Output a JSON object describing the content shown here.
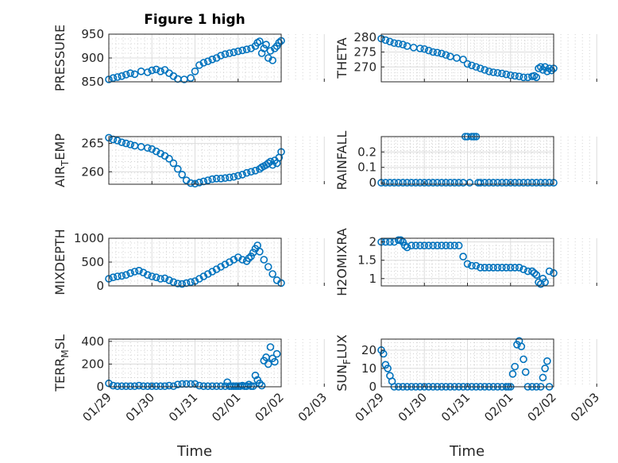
{
  "figure_title": "Figure 1 high",
  "x_ticks": [
    "01/29",
    "01/30",
    "01/31",
    "02/01",
    "02/02",
    "02/03"
  ],
  "x_label": "Time",
  "marker_color": "#0072bd",
  "chart_data": [
    {
      "type": "scatter",
      "ylabel": "PRESSURE",
      "yticks": [
        850,
        900,
        950
      ],
      "ylim": [
        850,
        950
      ],
      "grid": true,
      "x": [
        0.0,
        0.1,
        0.2,
        0.3,
        0.4,
        0.5,
        0.6,
        0.75,
        0.9,
        1.0,
        1.1,
        1.2,
        1.3,
        1.4,
        1.5,
        1.6,
        1.75,
        1.9,
        2.0,
        2.1,
        2.2,
        2.3,
        2.4,
        2.5,
        2.6,
        2.7,
        2.8,
        2.9,
        3.0,
        3.1,
        3.2,
        3.3,
        3.4,
        3.45,
        3.5,
        3.55,
        3.6,
        3.65,
        3.7,
        3.75,
        3.8,
        3.85,
        3.9,
        3.95,
        4.0
      ],
      "y": [
        855,
        858,
        860,
        862,
        865,
        868,
        866,
        872,
        870,
        874,
        876,
        872,
        875,
        868,
        862,
        856,
        855,
        858,
        872,
        885,
        890,
        893,
        897,
        900,
        905,
        908,
        910,
        912,
        914,
        916,
        918,
        920,
        925,
        932,
        935,
        910,
        920,
        928,
        900,
        915,
        895,
        920,
        925,
        932,
        936
      ]
    },
    {
      "type": "scatter",
      "ylabel": "THETA",
      "yticks": [
        270,
        275,
        280
      ],
      "ylim": [
        265,
        281
      ],
      "grid": true,
      "x": [
        0.0,
        0.1,
        0.2,
        0.3,
        0.4,
        0.5,
        0.6,
        0.75,
        0.9,
        1.0,
        1.1,
        1.2,
        1.3,
        1.4,
        1.5,
        1.6,
        1.75,
        1.9,
        2.0,
        2.1,
        2.2,
        2.3,
        2.4,
        2.5,
        2.6,
        2.7,
        2.8,
        2.9,
        3.0,
        3.1,
        3.2,
        3.3,
        3.4,
        3.5,
        3.55,
        3.6,
        3.65,
        3.7,
        3.75,
        3.8,
        3.85,
        3.9,
        3.95,
        4.0
      ],
      "y": [
        279.5,
        279.0,
        278.5,
        278.0,
        277.8,
        277.5,
        277.0,
        276.5,
        276.2,
        276.0,
        275.5,
        275.0,
        274.8,
        274.5,
        274.0,
        273.5,
        273.0,
        272.5,
        271.0,
        270.5,
        270.0,
        269.5,
        269.0,
        268.5,
        268.2,
        268.0,
        267.8,
        267.5,
        267.2,
        267.0,
        266.8,
        266.5,
        266.5,
        266.8,
        267.0,
        266.5,
        269.5,
        270.0,
        269.0,
        270.0,
        268.5,
        269.5,
        268.8,
        269.5
      ]
    },
    {
      "type": "scatter",
      "ylabel": "AIR_TEMP",
      "yticks": [
        260,
        265
      ],
      "ylim": [
        257.8,
        266.2
      ],
      "grid": true,
      "x": [
        0.0,
        0.1,
        0.2,
        0.3,
        0.4,
        0.5,
        0.6,
        0.75,
        0.9,
        1.0,
        1.1,
        1.2,
        1.3,
        1.4,
        1.5,
        1.6,
        1.7,
        1.8,
        1.9,
        2.0,
        2.1,
        2.2,
        2.3,
        2.4,
        2.5,
        2.6,
        2.7,
        2.8,
        2.9,
        3.0,
        3.1,
        3.2,
        3.3,
        3.4,
        3.5,
        3.55,
        3.6,
        3.65,
        3.7,
        3.75,
        3.8,
        3.85,
        3.9,
        3.95,
        4.0
      ],
      "y": [
        266.0,
        265.7,
        265.5,
        265.2,
        265.0,
        264.8,
        264.6,
        264.4,
        264.2,
        264.0,
        263.6,
        263.2,
        262.8,
        262.3,
        261.5,
        260.5,
        259.5,
        258.5,
        258.0,
        257.9,
        258.1,
        258.3,
        258.5,
        258.7,
        258.8,
        258.8,
        258.9,
        259.0,
        259.1,
        259.3,
        259.5,
        259.8,
        260.0,
        260.2,
        260.5,
        260.8,
        261.0,
        261.2,
        261.5,
        261.8,
        261.2,
        262.0,
        261.5,
        262.5,
        263.5
      ]
    },
    {
      "type": "scatter",
      "ylabel": "RAINFALL",
      "yticks": [
        0,
        0.1,
        0.2
      ],
      "ylim": [
        -0.01,
        0.3
      ],
      "grid": true,
      "x": [
        0.0,
        0.1,
        0.2,
        0.3,
        0.4,
        0.5,
        0.6,
        0.7,
        0.8,
        0.9,
        1.0,
        1.1,
        1.2,
        1.3,
        1.4,
        1.5,
        1.6,
        1.7,
        1.8,
        1.9,
        1.95,
        2.0,
        2.05,
        2.1,
        2.15,
        2.2,
        2.25,
        2.3,
        2.4,
        2.5,
        2.6,
        2.7,
        2.8,
        2.9,
        3.0,
        3.1,
        3.2,
        3.3,
        3.4,
        3.5,
        3.6,
        3.7,
        3.8,
        3.9,
        4.0
      ],
      "y": [
        0,
        0,
        0,
        0,
        0,
        0,
        0,
        0,
        0,
        0,
        0,
        0,
        0,
        0,
        0,
        0,
        0,
        0,
        0,
        0,
        0.3,
        0.3,
        0,
        0.3,
        0.3,
        0.3,
        0,
        0,
        0,
        0,
        0,
        0,
        0,
        0,
        0,
        0,
        0,
        0,
        0,
        0,
        0,
        0,
        0,
        0,
        0
      ]
    },
    {
      "type": "scatter",
      "ylabel": "MIXDEPTH",
      "yticks": [
        0,
        500,
        1000
      ],
      "ylim": [
        0,
        1000
      ],
      "grid": true,
      "x": [
        0.0,
        0.1,
        0.2,
        0.3,
        0.4,
        0.5,
        0.6,
        0.7,
        0.8,
        0.9,
        1.0,
        1.1,
        1.2,
        1.3,
        1.4,
        1.5,
        1.6,
        1.7,
        1.8,
        1.9,
        2.0,
        2.1,
        2.2,
        2.3,
        2.4,
        2.5,
        2.6,
        2.7,
        2.8,
        2.9,
        3.0,
        3.1,
        3.2,
        3.25,
        3.3,
        3.35,
        3.4,
        3.45,
        3.5,
        3.6,
        3.7,
        3.8,
        3.9,
        4.0
      ],
      "y": [
        150,
        180,
        200,
        210,
        230,
        270,
        300,
        320,
        280,
        230,
        200,
        180,
        150,
        160,
        120,
        80,
        50,
        40,
        60,
        80,
        100,
        150,
        200,
        250,
        300,
        350,
        400,
        450,
        500,
        550,
        600,
        550,
        520,
        580,
        620,
        700,
        780,
        850,
        720,
        550,
        400,
        250,
        120,
        60
      ]
    },
    {
      "type": "scatter",
      "ylabel": "H2OMIXRA",
      "yticks": [
        1,
        1.5,
        2
      ],
      "ylim": [
        0.8,
        2.1
      ],
      "grid": true,
      "x": [
        0.0,
        0.1,
        0.2,
        0.3,
        0.4,
        0.45,
        0.5,
        0.55,
        0.6,
        0.7,
        0.8,
        0.9,
        1.0,
        1.1,
        1.2,
        1.3,
        1.4,
        1.5,
        1.6,
        1.7,
        1.8,
        1.9,
        2.0,
        2.1,
        2.2,
        2.3,
        2.4,
        2.5,
        2.6,
        2.7,
        2.8,
        2.9,
        3.0,
        3.1,
        3.2,
        3.3,
        3.4,
        3.5,
        3.55,
        3.6,
        3.65,
        3.7,
        3.75,
        3.8,
        3.9,
        4.0
      ],
      "y": [
        2.0,
        2.0,
        2.0,
        2.0,
        2.05,
        2.05,
        2.0,
        1.9,
        1.85,
        1.9,
        1.9,
        1.9,
        1.9,
        1.9,
        1.9,
        1.9,
        1.9,
        1.9,
        1.9,
        1.9,
        1.9,
        1.6,
        1.4,
        1.35,
        1.35,
        1.3,
        1.3,
        1.3,
        1.3,
        1.3,
        1.3,
        1.3,
        1.3,
        1.3,
        1.3,
        1.25,
        1.2,
        1.2,
        1.15,
        1.1,
        0.9,
        0.85,
        1.0,
        0.9,
        1.2,
        1.15
      ]
    },
    {
      "type": "scatter",
      "ylabel": "TERR_MSL",
      "yticks": [
        0,
        200,
        400
      ],
      "ylim": [
        0,
        420
      ],
      "grid": true,
      "x": [
        0.0,
        0.1,
        0.2,
        0.3,
        0.4,
        0.5,
        0.6,
        0.7,
        0.8,
        0.9,
        1.0,
        1.1,
        1.2,
        1.3,
        1.4,
        1.5,
        1.6,
        1.7,
        1.8,
        1.9,
        2.0,
        2.1,
        2.2,
        2.3,
        2.4,
        2.5,
        2.6,
        2.7,
        2.75,
        2.8,
        2.85,
        2.9,
        2.95,
        3.0,
        3.05,
        3.1,
        3.15,
        3.2,
        3.25,
        3.3,
        3.35,
        3.4,
        3.45,
        3.5,
        3.55,
        3.6,
        3.65,
        3.7,
        3.75,
        3.8,
        3.85,
        3.9
      ],
      "y": [
        30,
        10,
        5,
        5,
        5,
        5,
        5,
        10,
        5,
        5,
        5,
        5,
        5,
        5,
        10,
        5,
        20,
        25,
        25,
        25,
        25,
        10,
        5,
        5,
        5,
        5,
        5,
        5,
        40,
        5,
        5,
        5,
        5,
        5,
        5,
        10,
        5,
        5,
        20,
        5,
        5,
        100,
        60,
        30,
        10,
        230,
        260,
        200,
        350,
        250,
        220,
        290
      ]
    },
    {
      "type": "scatter",
      "ylabel": "SUN_FLUX",
      "yticks": [
        0,
        10,
        20
      ],
      "ylim": [
        0,
        26
      ],
      "grid": true,
      "x": [
        0.0,
        0.05,
        0.1,
        0.15,
        0.2,
        0.25,
        0.3,
        0.4,
        0.5,
        0.6,
        0.7,
        0.8,
        0.9,
        1.0,
        1.1,
        1.2,
        1.3,
        1.4,
        1.5,
        1.6,
        1.7,
        1.8,
        1.9,
        2.0,
        2.1,
        2.2,
        2.3,
        2.4,
        2.5,
        2.6,
        2.7,
        2.8,
        2.9,
        2.95,
        3.0,
        3.05,
        3.1,
        3.15,
        3.2,
        3.25,
        3.3,
        3.35,
        3.4,
        3.5,
        3.6,
        3.7,
        3.75,
        3.8,
        3.85,
        3.9
      ],
      "y": [
        20,
        18,
        12,
        10,
        6,
        3,
        0,
        0,
        0,
        0,
        0,
        0,
        0,
        0,
        0,
        0,
        0,
        0,
        0,
        0,
        0,
        0,
        0,
        0,
        0,
        0,
        0,
        0,
        0,
        0,
        0,
        0,
        0,
        0,
        0,
        7,
        11,
        23,
        25,
        22,
        15,
        8,
        0,
        0,
        0,
        0,
        5,
        10,
        14,
        0
      ]
    }
  ]
}
